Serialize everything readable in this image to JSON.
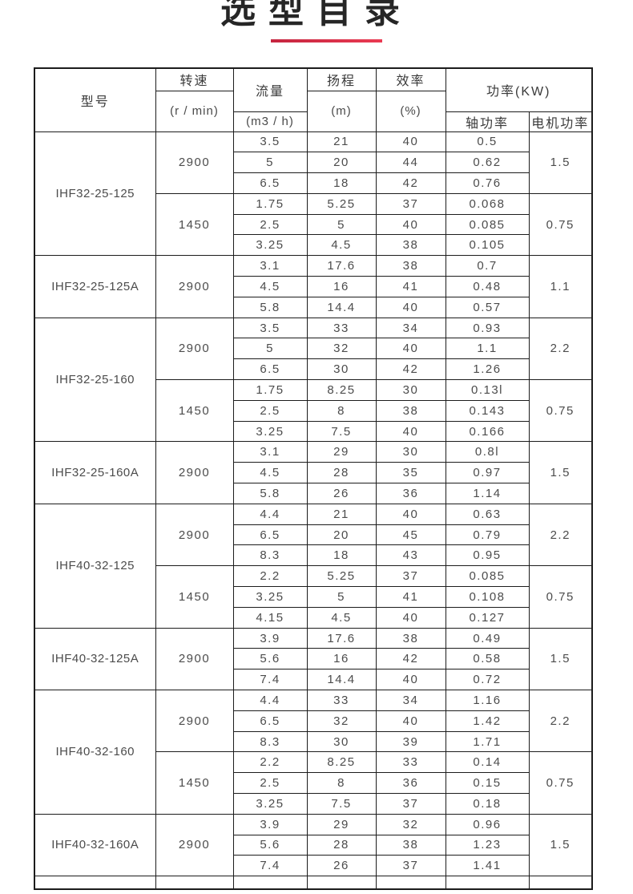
{
  "page": {
    "title": "选型目录"
  },
  "colors": {
    "accent_red": "#ea3a52",
    "accent_red_dark": "#c5253f",
    "border": "#1c1c1c",
    "title_text": "#262626",
    "body_text": "#4c4c4c"
  },
  "table": {
    "headers": {
      "model": "型号",
      "speed": "转速",
      "speed_unit": "(r / min)",
      "flow": "流量",
      "flow_unit": "(m3 / h)",
      "head": "扬程",
      "head_unit": "(m)",
      "efficiency": "效率",
      "efficiency_unit": "(%)",
      "power_kw": "功率(KW)",
      "shaft_power": "轴功率",
      "motor_power": "电机功率"
    },
    "sections": [
      {
        "model": "IHF32-25-125",
        "groups": [
          {
            "speed": "2900",
            "motor_power": "1.5",
            "rows": [
              {
                "flow": "3.5",
                "head": "21",
                "efficiency": "40",
                "shaft_power": "0.5"
              },
              {
                "flow": "5",
                "head": "20",
                "efficiency": "44",
                "shaft_power": "0.62"
              },
              {
                "flow": "6.5",
                "head": "18",
                "efficiency": "42",
                "shaft_power": "0.76"
              }
            ]
          },
          {
            "speed": "1450",
            "motor_power": "0.75",
            "rows": [
              {
                "flow": "1.75",
                "head": "5.25",
                "efficiency": "37",
                "shaft_power": "0.068"
              },
              {
                "flow": "2.5",
                "head": "5",
                "efficiency": "40",
                "shaft_power": "0.085"
              },
              {
                "flow": "3.25",
                "head": "4.5",
                "efficiency": "38",
                "shaft_power": "0.105"
              }
            ]
          }
        ]
      },
      {
        "model": "IHF32-25-125A",
        "groups": [
          {
            "speed": "2900",
            "motor_power": "1.1",
            "rows": [
              {
                "flow": "3.1",
                "head": "17.6",
                "efficiency": "38",
                "shaft_power": "0.7"
              },
              {
                "flow": "4.5",
                "head": "16",
                "efficiency": "41",
                "shaft_power": "0.48"
              },
              {
                "flow": "5.8",
                "head": "14.4",
                "efficiency": "40",
                "shaft_power": "0.57"
              }
            ]
          }
        ]
      },
      {
        "model": "IHF32-25-160",
        "groups": [
          {
            "speed": "2900",
            "motor_power": "2.2",
            "rows": [
              {
                "flow": "3.5",
                "head": "33",
                "efficiency": "34",
                "shaft_power": "0.93"
              },
              {
                "flow": "5",
                "head": "32",
                "efficiency": "40",
                "shaft_power": "1.1"
              },
              {
                "flow": "6.5",
                "head": "30",
                "efficiency": "42",
                "shaft_power": "1.26"
              }
            ]
          },
          {
            "speed": "1450",
            "motor_power": "0.75",
            "rows": [
              {
                "flow": "1.75",
                "head": "8.25",
                "efficiency": "30",
                "shaft_power": "0.13l"
              },
              {
                "flow": "2.5",
                "head": "8",
                "efficiency": "38",
                "shaft_power": "0.143"
              },
              {
                "flow": "3.25",
                "head": "7.5",
                "efficiency": "40",
                "shaft_power": "0.166"
              }
            ]
          }
        ]
      },
      {
        "model": "IHF32-25-160A",
        "groups": [
          {
            "speed": "2900",
            "motor_power": "1.5",
            "rows": [
              {
                "flow": "3.1",
                "head": "29",
                "efficiency": "30",
                "shaft_power": "0.8l"
              },
              {
                "flow": "4.5",
                "head": "28",
                "efficiency": "35",
                "shaft_power": "0.97"
              },
              {
                "flow": "5.8",
                "head": "26",
                "efficiency": "36",
                "shaft_power": "1.14"
              }
            ]
          }
        ]
      },
      {
        "model": "IHF40-32-125",
        "groups": [
          {
            "speed": "2900",
            "motor_power": "2.2",
            "rows": [
              {
                "flow": "4.4",
                "head": "21",
                "efficiency": "40",
                "shaft_power": "0.63"
              },
              {
                "flow": "6.5",
                "head": "20",
                "efficiency": "45",
                "shaft_power": "0.79"
              },
              {
                "flow": "8.3",
                "head": "18",
                "efficiency": "43",
                "shaft_power": "0.95"
              }
            ]
          },
          {
            "speed": "1450",
            "motor_power": "0.75",
            "rows": [
              {
                "flow": "2.2",
                "head": "5.25",
                "efficiency": "37",
                "shaft_power": "0.085"
              },
              {
                "flow": "3.25",
                "head": "5",
                "efficiency": "41",
                "shaft_power": "0.108"
              },
              {
                "flow": "4.15",
                "head": "4.5",
                "efficiency": "40",
                "shaft_power": "0.127"
              }
            ]
          }
        ]
      },
      {
        "model": "IHF40-32-125A",
        "groups": [
          {
            "speed": "2900",
            "motor_power": "1.5",
            "rows": [
              {
                "flow": "3.9",
                "head": "17.6",
                "efficiency": "38",
                "shaft_power": "0.49"
              },
              {
                "flow": "5.6",
                "head": "16",
                "efficiency": "42",
                "shaft_power": "0.58"
              },
              {
                "flow": "7.4",
                "head": "14.4",
                "efficiency": "40",
                "shaft_power": "0.72"
              }
            ]
          }
        ]
      },
      {
        "model": "IHF40-32-160",
        "groups": [
          {
            "speed": "2900",
            "motor_power": "2.2",
            "rows": [
              {
                "flow": "4.4",
                "head": "33",
                "efficiency": "34",
                "shaft_power": "1.16"
              },
              {
                "flow": "6.5",
                "head": "32",
                "efficiency": "40",
                "shaft_power": "1.42"
              },
              {
                "flow": "8.3",
                "head": "30",
                "efficiency": "39",
                "shaft_power": "1.71"
              }
            ]
          },
          {
            "speed": "1450",
            "motor_power": "0.75",
            "rows": [
              {
                "flow": "2.2",
                "head": "8.25",
                "efficiency": "33",
                "shaft_power": "0.14"
              },
              {
                "flow": "2.5",
                "head": "8",
                "efficiency": "36",
                "shaft_power": "0.15"
              },
              {
                "flow": "3.25",
                "head": "7.5",
                "efficiency": "37",
                "shaft_power": "0.18"
              }
            ]
          }
        ]
      },
      {
        "model": "IHF40-32-160A",
        "groups": [
          {
            "speed": "2900",
            "motor_power": "1.5",
            "rows": [
              {
                "flow": "3.9",
                "head": "29",
                "efficiency": "32",
                "shaft_power": "0.96"
              },
              {
                "flow": "5.6",
                "head": "28",
                "efficiency": "38",
                "shaft_power": "1.23"
              },
              {
                "flow": "7.4",
                "head": "26",
                "efficiency": "37",
                "shaft_power": "1.41"
              }
            ]
          }
        ]
      }
    ],
    "partial_next_row": true
  }
}
